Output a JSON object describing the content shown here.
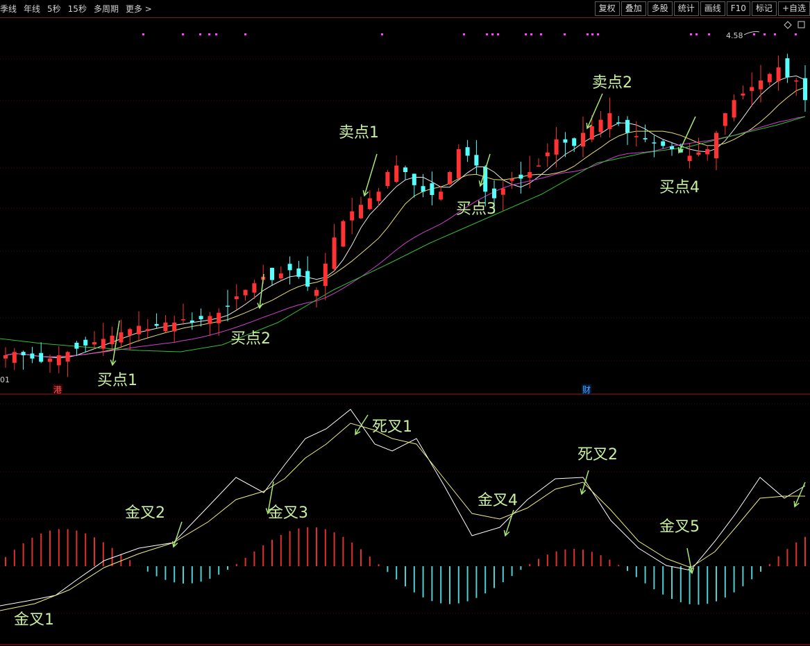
{
  "toolbar": {
    "left_items": [
      "季线",
      "年线",
      "5秒",
      "15秒",
      "多周期",
      "更多 >"
    ],
    "right_items": [
      "复权",
      "叠加",
      "多股",
      "统计",
      "画线",
      "F10",
      "标记",
      "+自选"
    ]
  },
  "price_panel": {
    "high_marker": "4.58",
    "left_edge_label": "01",
    "badges": [
      {
        "text": "港",
        "color": "#ff5a5a"
      },
      {
        "text": "财",
        "color": "#4aa8ff"
      }
    ],
    "annotations": [
      "买点1",
      "买点2",
      "卖点1",
      "买点3",
      "卖点2",
      "买点4"
    ],
    "ma_colors": {
      "ma_white": "#e8e8e8",
      "ma_yellow": "#e8e070",
      "ma_magenta": "#d040d0",
      "ma_green": "#30c030"
    }
  },
  "macd_panel": {
    "annotations": [
      "金叉1",
      "金叉2",
      "金叉3",
      "死叉1",
      "金叉4",
      "死叉2",
      "金叉5"
    ],
    "colors": {
      "dif": "#ffffff",
      "dea": "#f0f080",
      "hist_pos": "#e03030",
      "hist_neg": "#50d0d0"
    }
  },
  "colors": {
    "background": "#000000",
    "up_candle": "#ff3333",
    "down_candle": "#54ffff",
    "annotation_text": "#c8f0a0",
    "grid": "#5a0000",
    "signal_dots": "#ff40ff"
  },
  "chart_data": {
    "type": "candlestick",
    "series": [
      {
        "name": "price",
        "description_values": "close approx",
        "values": [
          3.62,
          3.63,
          3.62,
          3.61,
          3.6,
          3.61,
          3.62,
          3.63,
          3.64,
          3.65,
          3.66,
          3.67,
          3.68,
          3.69,
          3.7,
          3.71,
          3.7,
          3.71,
          3.72,
          3.72,
          3.73,
          3.72,
          3.73,
          3.74,
          3.75,
          3.77,
          3.8,
          3.82,
          3.84,
          3.86,
          3.85,
          3.87,
          3.88,
          3.86,
          3.83,
          3.82,
          3.9,
          3.98,
          4.03,
          4.06,
          4.08,
          4.1,
          4.12,
          4.18,
          4.2,
          4.18,
          4.14,
          4.12,
          4.11,
          4.12,
          4.18,
          4.25,
          4.23,
          4.2,
          4.12,
          4.1,
          4.13,
          4.16,
          4.16,
          4.18,
          4.2,
          4.24,
          4.28,
          4.27,
          4.26,
          4.3,
          4.32,
          4.34,
          4.36,
          4.33,
          4.3,
          4.29,
          4.28,
          4.27,
          4.26,
          4.25,
          4.24,
          4.23,
          4.24,
          4.25,
          4.3,
          4.36,
          4.4,
          4.42,
          4.44,
          4.46,
          4.48,
          4.5,
          4.47,
          4.46,
          4.4
        ]
      }
    ]
  }
}
